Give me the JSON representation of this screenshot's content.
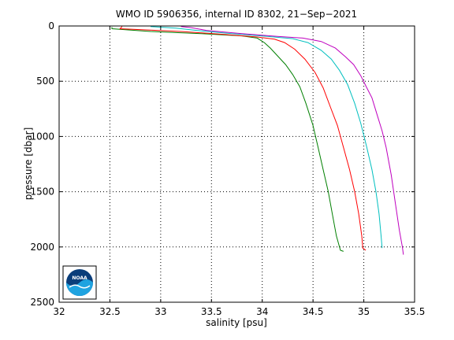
{
  "chart_data": {
    "type": "line",
    "title": "WMO ID 5906356, internal ID 8302, 21−Sep−2021",
    "xlabel": "salinity [psu]",
    "ylabel": "pressure [dbar]",
    "xlim": [
      32,
      35.5
    ],
    "ylim": [
      0,
      2500
    ],
    "y_inverted": true,
    "grid": true,
    "grid_style": "dotted",
    "x_ticks": [
      32,
      32.5,
      33,
      33.5,
      34,
      34.5,
      35,
      35.5
    ],
    "x_tick_labels": [
      "32",
      "32.5",
      "33",
      "33.5",
      "34",
      "34.5",
      "35",
      "35.5"
    ],
    "y_ticks": [
      0,
      500,
      1000,
      1500,
      2000,
      2500
    ],
    "y_tick_labels": [
      "0",
      "500",
      "1000",
      "1500",
      "2000",
      "2500"
    ],
    "logo": "noaa-logo",
    "series": [
      {
        "color": "#007f00",
        "points": [
          [
            32.52,
            10
          ],
          [
            32.52,
            25
          ],
          [
            32.9,
            50
          ],
          [
            33.4,
            70
          ],
          [
            33.8,
            90
          ],
          [
            33.95,
            110
          ],
          [
            34.02,
            150
          ],
          [
            34.08,
            200
          ],
          [
            34.15,
            270
          ],
          [
            34.23,
            350
          ],
          [
            34.3,
            440
          ],
          [
            34.37,
            550
          ],
          [
            34.43,
            700
          ],
          [
            34.5,
            900
          ],
          [
            34.55,
            1100
          ],
          [
            34.6,
            1300
          ],
          [
            34.65,
            1500
          ],
          [
            34.69,
            1700
          ],
          [
            34.73,
            1900
          ],
          [
            34.77,
            2030
          ],
          [
            34.8,
            2040
          ]
        ]
      },
      {
        "color": "#ff0000",
        "points": [
          [
            32.62,
            5
          ],
          [
            32.6,
            25
          ],
          [
            33.2,
            50
          ],
          [
            33.6,
            75
          ],
          [
            33.95,
            100
          ],
          [
            34.12,
            120
          ],
          [
            34.22,
            150
          ],
          [
            34.32,
            210
          ],
          [
            34.42,
            300
          ],
          [
            34.52,
            420
          ],
          [
            34.6,
            560
          ],
          [
            34.67,
            730
          ],
          [
            34.74,
            900
          ],
          [
            34.8,
            1100
          ],
          [
            34.86,
            1300
          ],
          [
            34.91,
            1500
          ],
          [
            34.95,
            1700
          ],
          [
            34.98,
            1900
          ],
          [
            34.99,
            2010
          ],
          [
            35.02,
            2030
          ]
        ]
      },
      {
        "color": "#00bfbf",
        "points": [
          [
            32.9,
            5
          ],
          [
            33.15,
            20
          ],
          [
            33.4,
            45
          ],
          [
            33.7,
            70
          ],
          [
            34.05,
            95
          ],
          [
            34.3,
            115
          ],
          [
            34.45,
            150
          ],
          [
            34.58,
            220
          ],
          [
            34.68,
            300
          ],
          [
            34.76,
            400
          ],
          [
            34.84,
            530
          ],
          [
            34.91,
            700
          ],
          [
            34.97,
            880
          ],
          [
            35.03,
            1100
          ],
          [
            35.08,
            1300
          ],
          [
            35.12,
            1500
          ],
          [
            35.15,
            1700
          ],
          [
            35.17,
            1900
          ],
          [
            35.18,
            2010
          ]
        ]
      },
      {
        "color": "#bf00bf",
        "points": [
          [
            33.2,
            5
          ],
          [
            33.3,
            15
          ],
          [
            33.45,
            40
          ],
          [
            33.8,
            70
          ],
          [
            34.15,
            95
          ],
          [
            34.4,
            110
          ],
          [
            34.58,
            140
          ],
          [
            34.72,
            200
          ],
          [
            34.82,
            280
          ],
          [
            34.9,
            350
          ],
          [
            34.97,
            450
          ],
          [
            35.03,
            560
          ],
          [
            35.08,
            650
          ],
          [
            35.13,
            800
          ],
          [
            35.18,
            950
          ],
          [
            35.22,
            1100
          ],
          [
            35.27,
            1350
          ],
          [
            35.31,
            1600
          ],
          [
            35.35,
            1850
          ],
          [
            35.38,
            2000
          ],
          [
            35.39,
            2070
          ]
        ]
      }
    ]
  }
}
